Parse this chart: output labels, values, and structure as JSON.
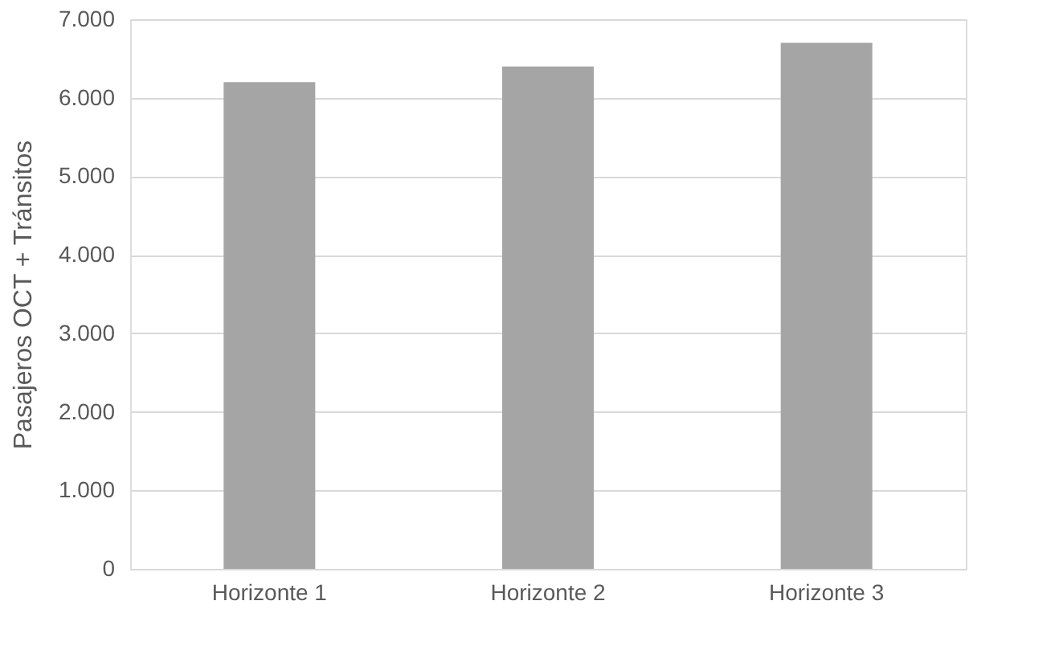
{
  "chart_data": {
    "type": "bar",
    "ylabel": "Pasajeros OCT + Tránsitos",
    "categories": [
      "Horizonte 1",
      "Horizonte 2",
      "Horizonte 3"
    ],
    "values": [
      6200,
      6400,
      6700
    ],
    "color": "#a5a5a5",
    "ylim": [
      0,
      7000
    ],
    "yticks": [
      {
        "value": 0,
        "label": "0"
      },
      {
        "value": 1000,
        "label": "1.000"
      },
      {
        "value": 2000,
        "label": "2.000"
      },
      {
        "value": 3000,
        "label": "3.000"
      },
      {
        "value": 4000,
        "label": "4.000"
      },
      {
        "value": 5000,
        "label": "5.000"
      },
      {
        "value": 6000,
        "label": "6.000"
      },
      {
        "value": 7000,
        "label": "7.000"
      }
    ],
    "grid": "y"
  }
}
